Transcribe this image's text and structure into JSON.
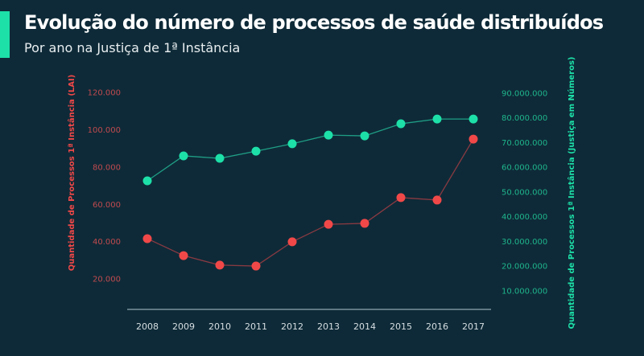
{
  "header": {
    "title": "Evolução do número de processos de saúde distribuídos",
    "subtitle": "Por ano na Justiça de 1ª Instância"
  },
  "colors": {
    "background": "#0e2a38",
    "accent": "#1de0a8",
    "red_series": "#f04848",
    "green_series": "#1de0a8"
  },
  "chart_data": {
    "type": "line",
    "x": [
      "2008",
      "2009",
      "2010",
      "2011",
      "2012",
      "2013",
      "2014",
      "2015",
      "2016",
      "2017"
    ],
    "y_left": {
      "label": "Quantidade de Processos 1ª Instância (LAI)",
      "ticks": [
        "20.000",
        "40.000",
        "60.000",
        "80.000",
        "100.000",
        "120.000"
      ],
      "tick_values": [
        20000,
        40000,
        60000,
        80000,
        100000,
        120000
      ],
      "range": [
        0,
        120000
      ]
    },
    "y_right": {
      "label": "Quantidade de Processos 1ª Instância (Justiça em Números)",
      "ticks": [
        "10.000.000",
        "20.000.000",
        "30.000.000",
        "40.000.000",
        "50.000.000",
        "60.000.000",
        "70.000.000",
        "80.000.000",
        "90.000.000"
      ],
      "tick_values": [
        10000000,
        20000000,
        30000000,
        40000000,
        50000000,
        60000000,
        70000000,
        80000000,
        90000000
      ],
      "range": [
        0,
        90000000
      ]
    },
    "series": [
      {
        "axis": "left",
        "color": "#f04848",
        "values": [
          41400,
          32300,
          27200,
          26700,
          39700,
          49100,
          49600,
          63400,
          62100,
          94800
        ]
      },
      {
        "axis": "right",
        "color": "#1de0a8",
        "values": [
          54300000,
          64400000,
          63400000,
          66300000,
          69300000,
          72800000,
          72500000,
          77400000,
          79300000,
          79300000
        ]
      }
    ],
    "grid": false
  }
}
